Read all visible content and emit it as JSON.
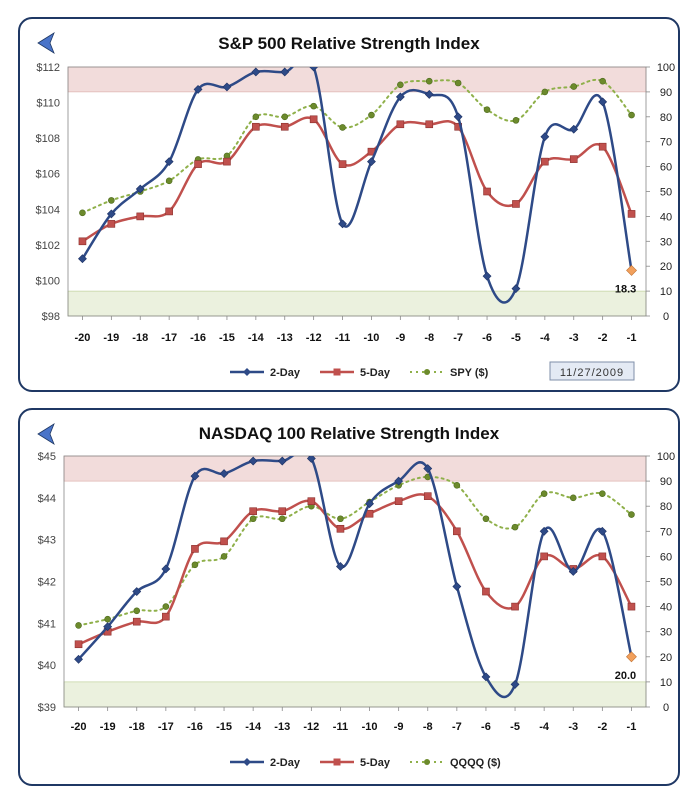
{
  "colors": {
    "two_day": "#2e4a87",
    "five_day": "#c0504d",
    "price": "#8fb04a",
    "last_point": "#f2a05c",
    "overbought_band": "#f2dcdb",
    "oversold_band": "#ebf1de",
    "frame": "#1f3864"
  },
  "chart_data": [
    {
      "type": "line",
      "title": "S&P 500 Relative Strength Index",
      "categories": [
        "-20",
        "-19",
        "-18",
        "-17",
        "-16",
        "-15",
        "-14",
        "-13",
        "-12",
        "-11",
        "-10",
        "-9",
        "-8",
        "-7",
        "-6",
        "-5",
        "-4",
        "-3",
        "-2",
        "-1"
      ],
      "left_ticks": [
        "$98",
        "$100",
        "$102",
        "$104",
        "$106",
        "$108",
        "$110",
        "$112"
      ],
      "left_ylim": [
        98,
        112
      ],
      "right_ticks": [
        "0",
        "10",
        "20",
        "30",
        "40",
        "50",
        "60",
        "70",
        "80",
        "90",
        "100"
      ],
      "right_ylim": [
        0,
        100
      ],
      "bands": {
        "overbought": [
          90,
          100
        ],
        "oversold": [
          0,
          10
        ]
      },
      "series": [
        {
          "name": "2-Day",
          "axis": "right",
          "values": [
            23,
            41,
            51,
            62,
            91,
            92,
            98,
            98,
            100,
            37,
            62,
            88,
            89,
            80,
            16,
            11,
            72,
            75,
            86,
            18.3
          ]
        },
        {
          "name": "5-Day",
          "axis": "right",
          "values": [
            30,
            37,
            40,
            42,
            61,
            62,
            76,
            76,
            79,
            61,
            66,
            77,
            77,
            76,
            50,
            45,
            62,
            63,
            68,
            41
          ]
        },
        {
          "name": "SPY ($)",
          "axis": "left",
          "values": [
            103.8,
            104.5,
            105.0,
            105.6,
            106.8,
            107.0,
            109.2,
            109.2,
            109.8,
            108.6,
            109.3,
            111.0,
            111.2,
            111.1,
            109.6,
            109.0,
            110.6,
            110.9,
            111.2,
            109.3
          ]
        }
      ],
      "last_label": "18.3",
      "date_label": "11/27/2009"
    },
    {
      "type": "line",
      "title": "NASDAQ 100 Relative Strength Index",
      "categories": [
        "-20",
        "-19",
        "-18",
        "-17",
        "-16",
        "-15",
        "-14",
        "-13",
        "-12",
        "-11",
        "-10",
        "-9",
        "-8",
        "-7",
        "-6",
        "-5",
        "-4",
        "-3",
        "-2",
        "-1"
      ],
      "left_ticks": [
        "$39",
        "$40",
        "$41",
        "$42",
        "$43",
        "$44",
        "$45"
      ],
      "left_ylim": [
        39,
        45
      ],
      "right_ticks": [
        "0",
        "10",
        "20",
        "30",
        "40",
        "50",
        "60",
        "70",
        "80",
        "90",
        "100"
      ],
      "right_ylim": [
        0,
        100
      ],
      "bands": {
        "overbought": [
          90,
          100
        ],
        "oversold": [
          0,
          10
        ]
      },
      "series": [
        {
          "name": "2-Day",
          "axis": "right",
          "values": [
            19,
            32,
            46,
            55,
            92,
            93,
            98,
            98,
            99,
            56,
            81,
            90,
            95,
            48,
            12,
            9,
            70,
            54,
            70,
            20.0
          ]
        },
        {
          "name": "5-Day",
          "axis": "right",
          "values": [
            25,
            30,
            34,
            36,
            63,
            66,
            78,
            78,
            82,
            71,
            77,
            82,
            84,
            70,
            46,
            40,
            60,
            55,
            60,
            40
          ]
        },
        {
          "name": "QQQQ ($)",
          "axis": "left",
          "values": [
            40.95,
            41.1,
            41.3,
            41.4,
            42.4,
            42.6,
            43.5,
            43.5,
            43.8,
            43.5,
            43.9,
            44.3,
            44.5,
            44.3,
            43.5,
            43.3,
            44.1,
            44.0,
            44.1,
            43.6
          ]
        }
      ],
      "last_label": "20.0",
      "date_label": ""
    }
  ]
}
